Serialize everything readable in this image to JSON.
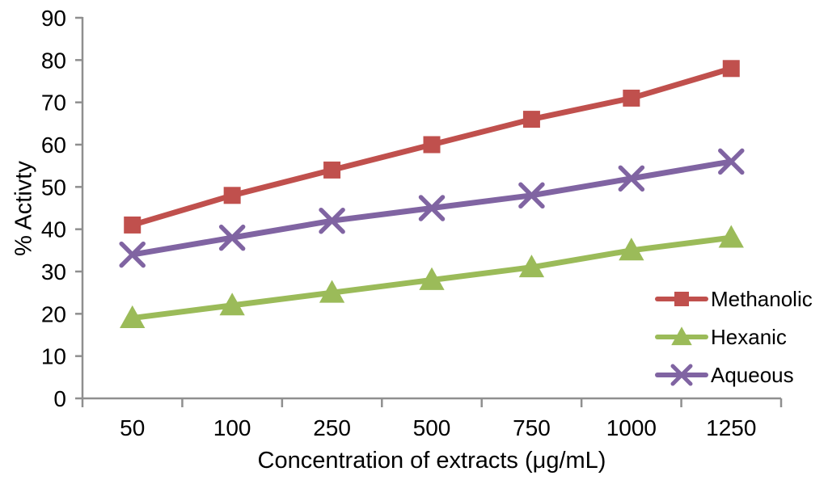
{
  "chart_data": {
    "type": "line",
    "title": "",
    "categories": [
      "50",
      "100",
      "250",
      "500",
      "750",
      "1000",
      "1250"
    ],
    "series": [
      {
        "name": "Methanolic",
        "marker": "square",
        "color": "#c0504d",
        "values": [
          41,
          48,
          54,
          60,
          66,
          71,
          78
        ]
      },
      {
        "name": "Hexanic",
        "marker": "triangle",
        "color": "#9bbb59",
        "values": [
          19,
          22,
          25,
          28,
          31,
          35,
          38
        ]
      },
      {
        "name": "Aqueous",
        "marker": "x",
        "color": "#8064a2",
        "values": [
          34,
          38,
          42,
          45,
          48,
          52,
          56
        ]
      }
    ],
    "xlabel": "Concentration of extracts (μg/mL)",
    "ylabel": "% Activty",
    "ylim": [
      0,
      90
    ],
    "yticks": [
      0,
      10,
      20,
      30,
      40,
      50,
      60,
      70,
      80,
      90
    ],
    "grid": false,
    "legend_position": "right-lower",
    "axis_color": "#8f8f8f",
    "text_color": "#000000"
  }
}
